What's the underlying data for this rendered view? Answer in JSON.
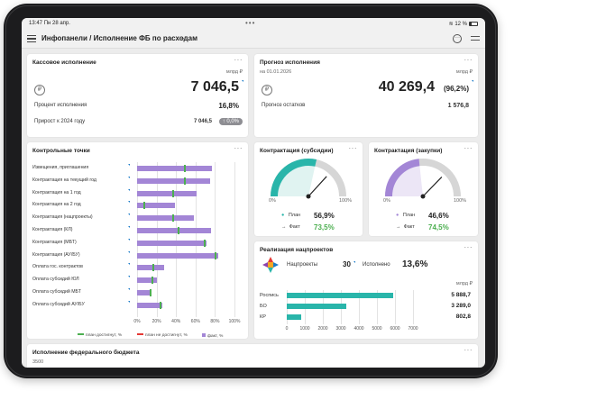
{
  "status": {
    "time": "13:47",
    "date": "Пн 28 апр.",
    "battery": "12 %"
  },
  "app": {
    "title": "Инфопанели / Исполнение ФБ по расходам"
  },
  "kassa": {
    "title": "Кассовое исполнение",
    "unit": "млрд ₽",
    "value": "7 046,5",
    "exec_label": "Процент исполнения",
    "exec_value": "16,8%",
    "growth_label": "Прирост к 2024 году",
    "growth_value": "7 046,5",
    "growth_badge": "0,0%"
  },
  "forecast": {
    "title": "Прогноз исполнения",
    "date": "на 01.01.2026",
    "unit": "млрд ₽",
    "value": "40 269,4",
    "value_pct": "(96,2%)",
    "rest_label": "Прогноз остатков",
    "rest_value": "1 576,8"
  },
  "control": {
    "title": "Контрольные точки",
    "rows": [
      {
        "label": "Извещения, приглашения",
        "fact": 77,
        "plan": 49
      },
      {
        "label": "Контрактация на текущий год",
        "fact": 75,
        "plan": 49
      },
      {
        "label": "Контрактация на 1 год",
        "fact": 61,
        "plan": 37
      },
      {
        "label": "Контрактация на 2 год",
        "fact": 39,
        "plan": 7
      },
      {
        "label": "Контрактация (нацпроекты)",
        "fact": 58,
        "plan": 37
      },
      {
        "label": "Контрактация (КЛ)",
        "fact": 76,
        "plan": 43
      },
      {
        "label": "Контрактация (МБТ)",
        "fact": 71,
        "plan": 69
      },
      {
        "label": "Контрактация (АУ/БУ)",
        "fact": 83,
        "plan": 81
      },
      {
        "label": "Оплата гос. контрактов",
        "fact": 28,
        "plan": 17
      },
      {
        "label": "Оплата субсидий ЮЛ",
        "fact": 20,
        "plan": 16
      },
      {
        "label": "Оплата субсидий МБТ",
        "fact": 14,
        "plan": 14
      },
      {
        "label": "Оплата субсидий АУ/БУ",
        "fact": 26,
        "plan": 24
      }
    ],
    "ticks": [
      "0%",
      "20%",
      "40%",
      "60%",
      "80%",
      "100%"
    ],
    "legend": {
      "plan_ok": "план достигнут, %",
      "plan_fail": "план не достигнут, %",
      "fact": "факт, %"
    }
  },
  "subsid": {
    "title": "Контрактация (субсидии)",
    "min": "0%",
    "max": "100%",
    "plan_label": "План",
    "plan_value": "56,9%",
    "fact_label": "Факт",
    "fact_value": "73,5%",
    "plan": 56.9,
    "fact": 73.5
  },
  "zakup": {
    "title": "Контрактация (закупки)",
    "min": "0%",
    "max": "100%",
    "plan_label": "План",
    "plan_value": "46,6%",
    "fact_label": "Факт",
    "fact_value": "74,5%",
    "plan": 46.6,
    "fact": 74.5
  },
  "nacpr": {
    "title": "Реализация нацпроектов",
    "np_label": "Нацпроекты",
    "np_count": "30",
    "done_label": "Исполнено",
    "done_pct": "13,6%",
    "unit": "млрд ₽",
    "bars": [
      {
        "label": "Роспись",
        "value": 5888.7,
        "text": "5 888,7"
      },
      {
        "label": "БО",
        "value": 3289.0,
        "text": "3 289,0"
      },
      {
        "label": "КР",
        "value": 802.8,
        "text": "802,8"
      }
    ],
    "ticks": [
      "0",
      "1000",
      "2000",
      "3000",
      "4000",
      "5000",
      "6000",
      "7000"
    ]
  },
  "fedbud": {
    "title": "Исполнение федерального бюджета",
    "first_tick": "3500"
  },
  "colors": {
    "teal": "#29b5aa",
    "purple": "#a386d6",
    "green": "#4caf50",
    "red": "#e53935",
    "accent": "#1a7bc8"
  }
}
